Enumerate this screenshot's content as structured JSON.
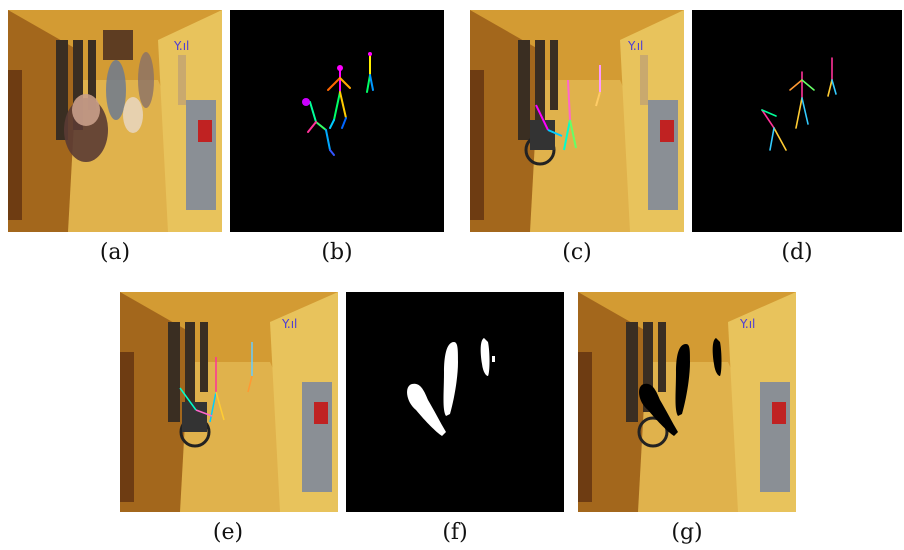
{
  "figure": {
    "captions": {
      "a": "(a)",
      "b": "(b)",
      "c": "(c)",
      "d": "(d)",
      "e": "(e)",
      "f": "(f)",
      "g": "(g)"
    }
  },
  "colors": {
    "corridor_floor": "#d9a63a",
    "corridor_wall": "#e7c257",
    "background_black": "#000000",
    "mask_white": "#ffffff"
  }
}
